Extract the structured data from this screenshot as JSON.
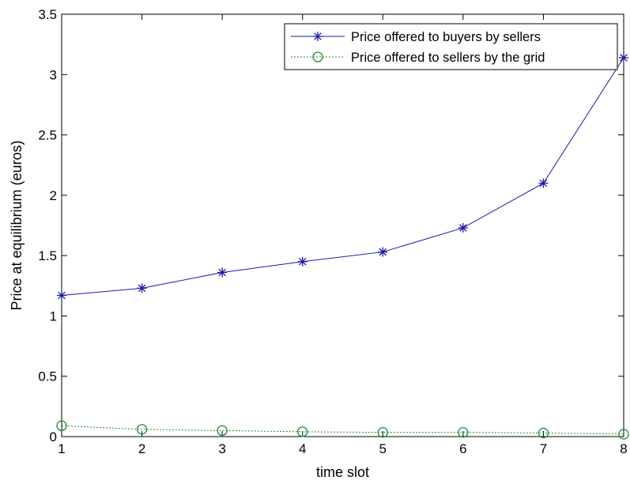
{
  "chart_data": {
    "type": "line",
    "title": "",
    "xlabel": "time slot",
    "ylabel": "Price at equilibrium (euros)",
    "xlim": [
      1,
      8
    ],
    "ylim": [
      0,
      3.5
    ],
    "xticks": [
      1,
      2,
      3,
      4,
      5,
      6,
      7,
      8
    ],
    "yticks": [
      0,
      0.5,
      1,
      1.5,
      2,
      2.5,
      3,
      3.5
    ],
    "xtick_labels": [
      "1",
      "2",
      "3",
      "4",
      "5",
      "6",
      "7",
      "8"
    ],
    "ytick_labels": [
      "0",
      "0.5",
      "1",
      "1.5",
      "2",
      "2.5",
      "3",
      "3.5"
    ],
    "grid": false,
    "legend_position": "top-right",
    "x": [
      1,
      2,
      3,
      4,
      5,
      6,
      7,
      8
    ],
    "series": [
      {
        "name": "Price offered to buyers by sellers",
        "values": [
          1.17,
          1.23,
          1.36,
          1.45,
          1.53,
          1.73,
          2.1,
          3.14
        ],
        "color": "#1a1aa6",
        "marker": "asterisk",
        "line_style": "solid"
      },
      {
        "name": "Price offered to sellers by the grid",
        "values": [
          0.09,
          0.06,
          0.05,
          0.04,
          0.035,
          0.035,
          0.03,
          0.02
        ],
        "color": "#1f8a2e",
        "marker": "circle",
        "line_style": "dotted"
      }
    ]
  }
}
